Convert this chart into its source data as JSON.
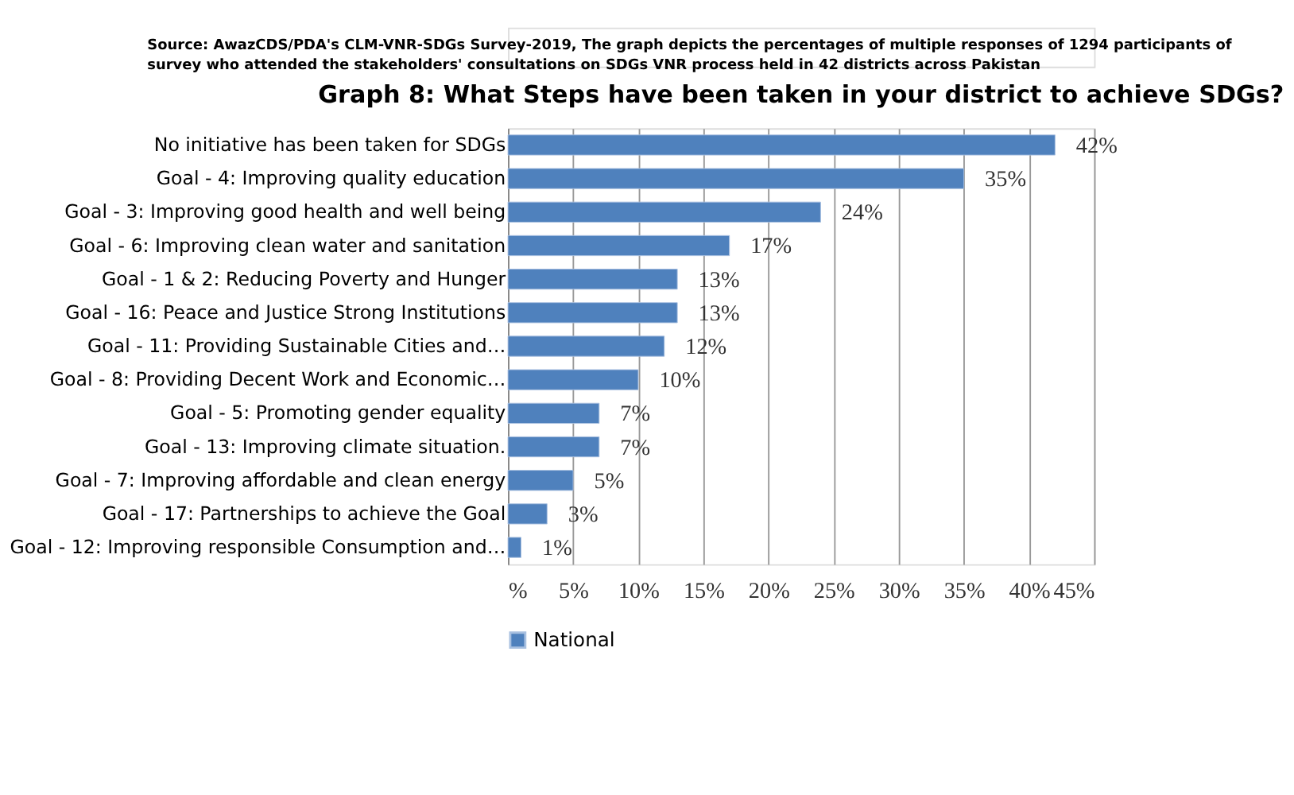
{
  "chart_data": {
    "type": "bar",
    "orientation": "horizontal",
    "title": "Graph 8: What Steps have been taken in your district to achieve SDGs?",
    "annotations": [
      "Source: AwazCDS/PDA's CLM-VNR-SDGs Survey-2019, The graph depicts the percentages of multiple responses of 1294 participants of survey who attended the stakeholders' consultations on SDGs VNR process held in 42 districts across Pakistan"
    ],
    "categories": [
      "No initiative has been taken for SDGs",
      "Goal - 4: Improving quality education",
      "Goal - 3: Improving good health and well being",
      "Goal - 6: Improving clean water and sanitation",
      "Goal - 1 & 2: Reducing Poverty and Hunger",
      "Goal - 16: Peace and Justice Strong Institutions",
      "Goal - 11: Providing Sustainable Cities and…",
      "Goal - 8: Providing Decent Work and Economic…",
      "Goal - 5: Promoting gender equality",
      "Goal - 13: Improving climate situation.",
      "Goal - 7: Improving affordable and clean energy",
      "Goal - 17: Partnerships to achieve the Goal",
      "Goal - 12: Improving responsible Consumption and…"
    ],
    "series": [
      {
        "name": "National",
        "color": "#4f81bd",
        "values": [
          42,
          35,
          24,
          17,
          13,
          13,
          12,
          10,
          7,
          7,
          5,
          3,
          1
        ],
        "value_labels": [
          "42%",
          "35%",
          "24%",
          "17%",
          "13%",
          "13%",
          "12%",
          "10%",
          "7%",
          "7%",
          "5%",
          "3%",
          "1%"
        ]
      }
    ],
    "xlim": [
      0,
      45
    ],
    "xticks": [
      {
        "value": 0,
        "label": "%"
      },
      {
        "value": 5,
        "label": "5%"
      },
      {
        "value": 10,
        "label": "10%"
      },
      {
        "value": 15,
        "label": "15%"
      },
      {
        "value": 20,
        "label": "20%"
      },
      {
        "value": 25,
        "label": "25%"
      },
      {
        "value": 30,
        "label": "30%"
      },
      {
        "value": 35,
        "label": "35%"
      },
      {
        "value": 40,
        "label": "40%"
      },
      {
        "value": 45,
        "label": "45%"
      }
    ],
    "grid": "x",
    "legend": "bottom"
  }
}
